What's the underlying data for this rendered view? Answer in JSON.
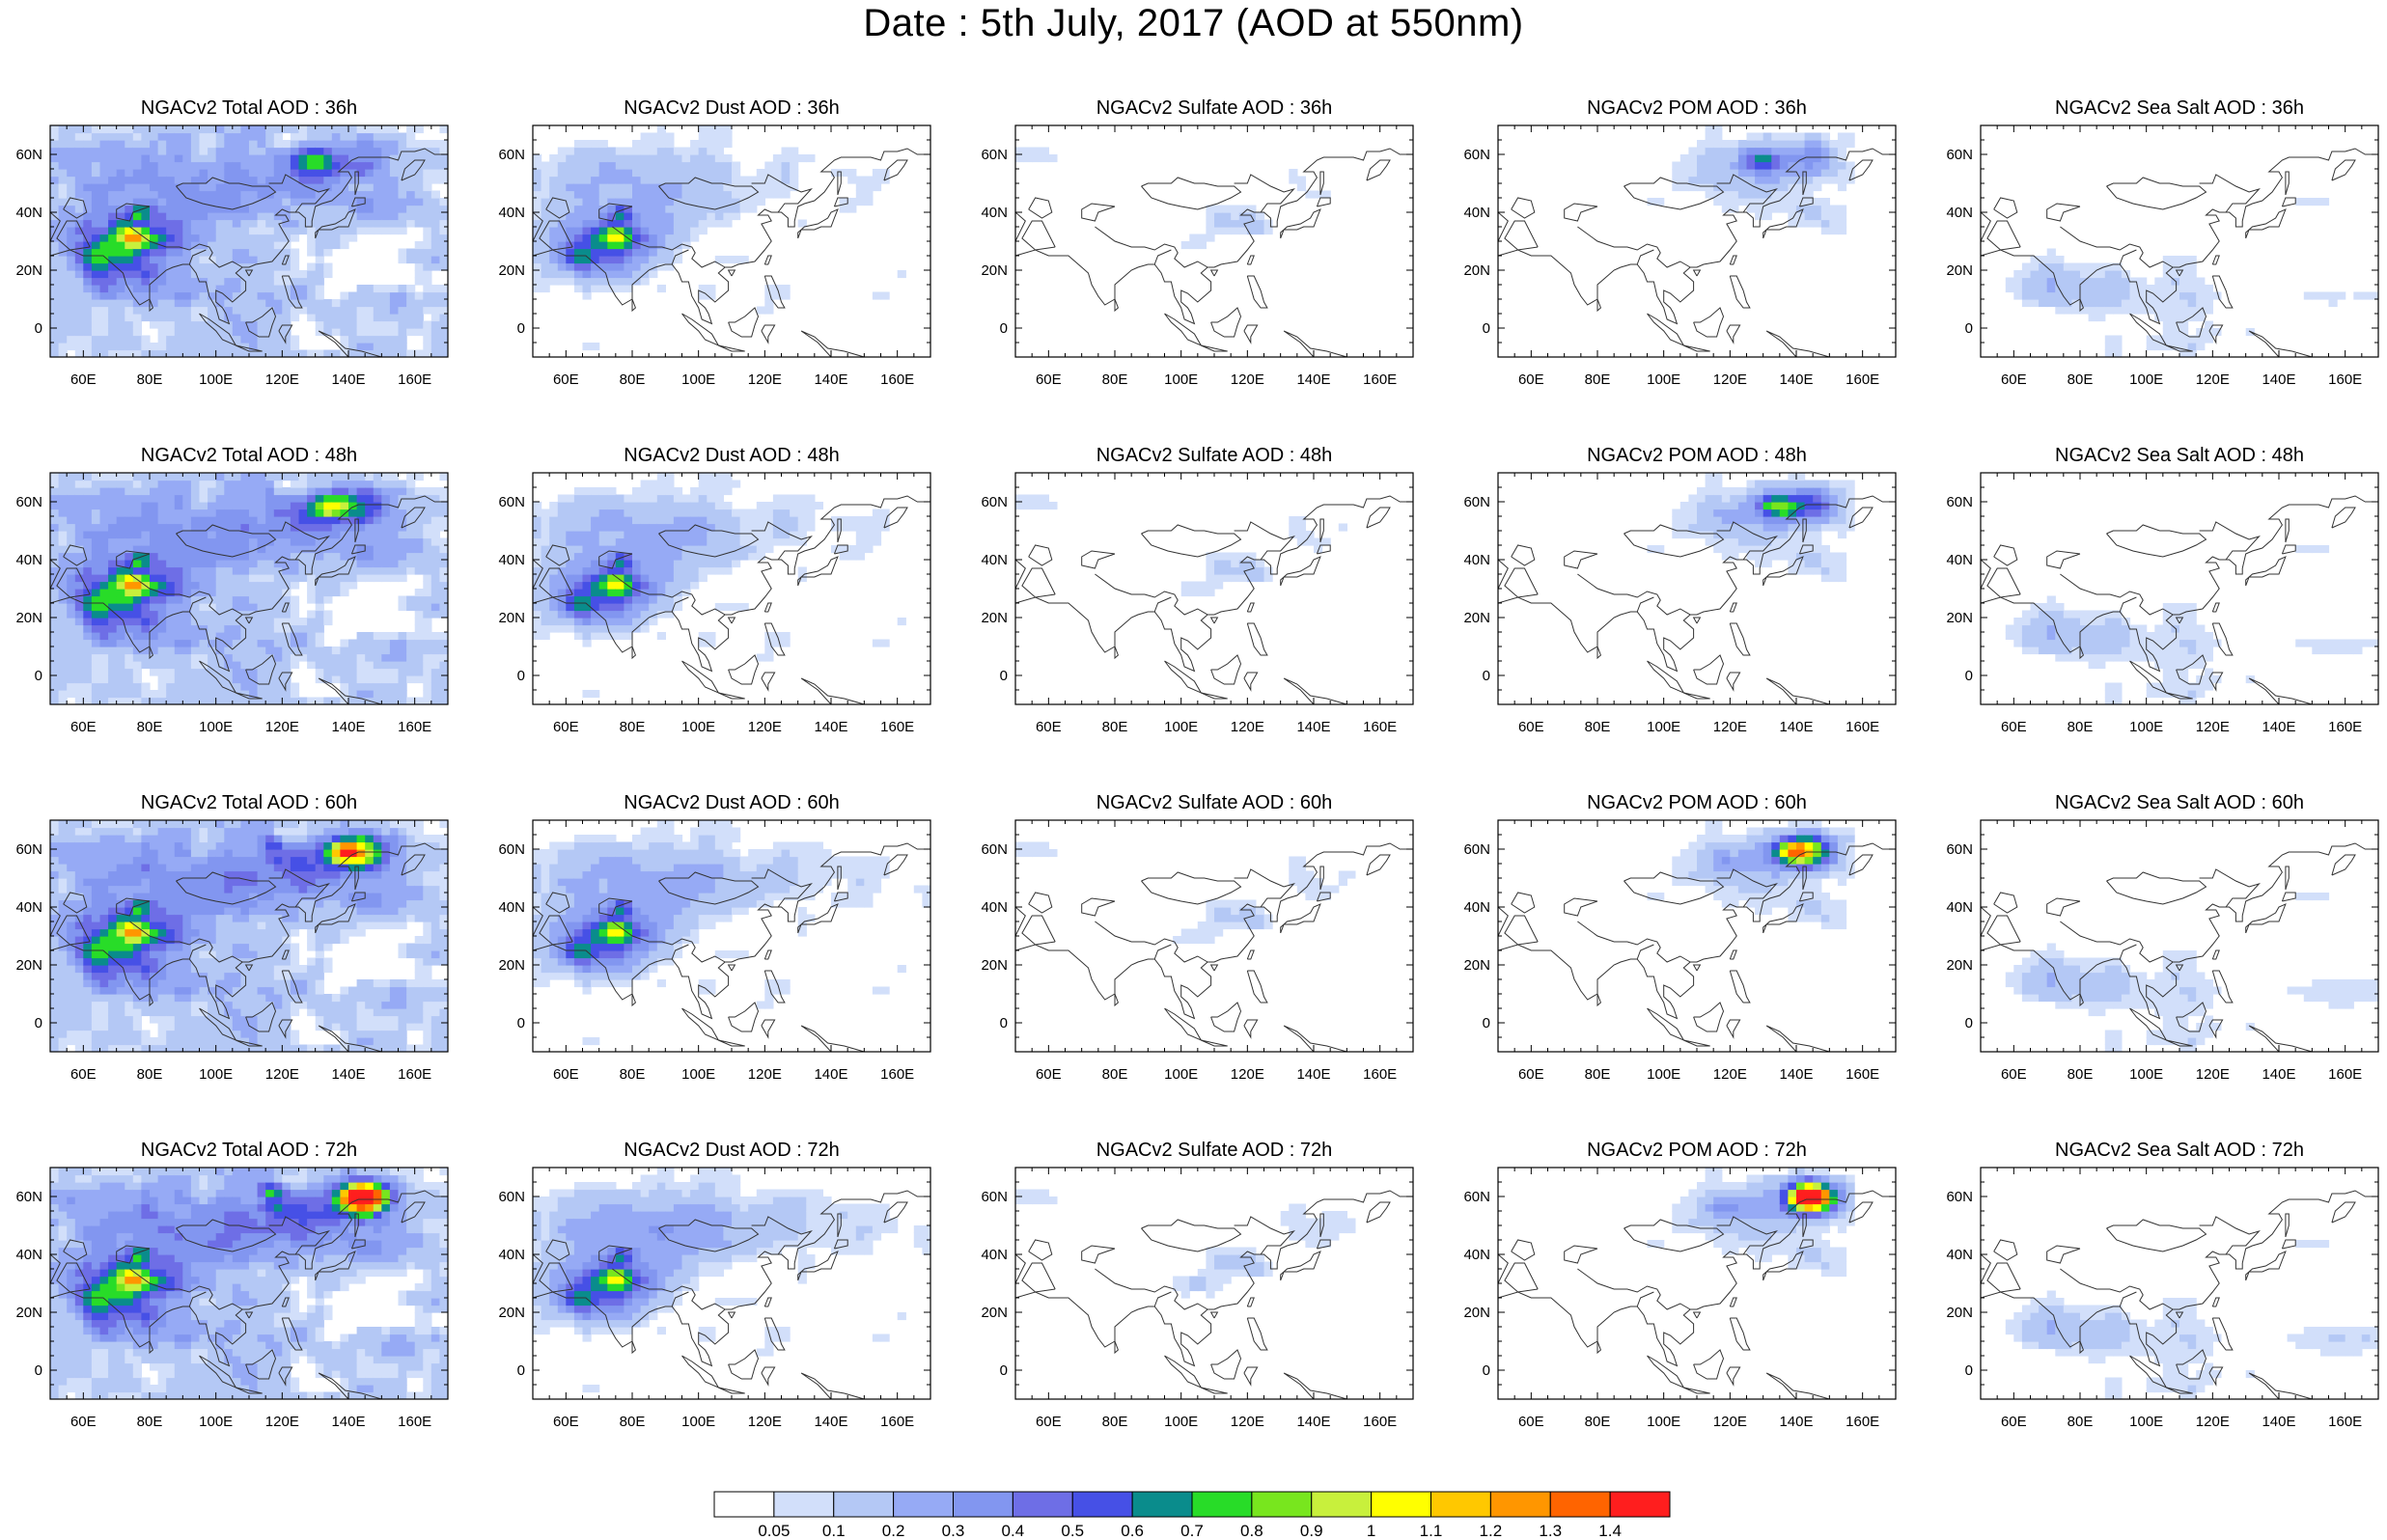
{
  "title": "Date : 5th July, 2017 (AOD at 550nm)",
  "panels": [
    {
      "title": "NGACv2 Total AOD : 36h",
      "species": "total",
      "hour": "36h"
    },
    {
      "title": "NGACv2 Dust AOD : 36h",
      "species": "dust",
      "hour": "36h"
    },
    {
      "title": "NGACv2 Sulfate AOD : 36h",
      "species": "sulfate",
      "hour": "36h"
    },
    {
      "title": "NGACv2 POM AOD : 36h",
      "species": "pom",
      "hour": "36h"
    },
    {
      "title": "NGACv2 Sea Salt AOD : 36h",
      "species": "seasalt",
      "hour": "36h"
    },
    {
      "title": "NGACv2 Total AOD : 48h",
      "species": "total",
      "hour": "48h"
    },
    {
      "title": "NGACv2 Dust AOD : 48h",
      "species": "dust",
      "hour": "48h"
    },
    {
      "title": "NGACv2 Sulfate AOD : 48h",
      "species": "sulfate",
      "hour": "48h"
    },
    {
      "title": "NGACv2 POM AOD : 48h",
      "species": "pom",
      "hour": "48h"
    },
    {
      "title": "NGACv2 Sea Salt AOD : 48h",
      "species": "seasalt",
      "hour": "48h"
    },
    {
      "title": "NGACv2 Total AOD : 60h",
      "species": "total",
      "hour": "60h"
    },
    {
      "title": "NGACv2 Dust AOD : 60h",
      "species": "dust",
      "hour": "60h"
    },
    {
      "title": "NGACv2 Sulfate AOD : 60h",
      "species": "sulfate",
      "hour": "60h"
    },
    {
      "title": "NGACv2 POM AOD : 60h",
      "species": "pom",
      "hour": "60h"
    },
    {
      "title": "NGACv2 Sea Salt AOD : 60h",
      "species": "seasalt",
      "hour": "60h"
    },
    {
      "title": "NGACv2 Total AOD : 72h",
      "species": "total",
      "hour": "72h"
    },
    {
      "title": "NGACv2 Dust AOD : 72h",
      "species": "dust",
      "hour": "72h"
    },
    {
      "title": "NGACv2 Sulfate AOD : 72h",
      "species": "sulfate",
      "hour": "72h"
    },
    {
      "title": "NGACv2 POM AOD : 72h",
      "species": "pom",
      "hour": "72h"
    },
    {
      "title": "NGACv2 Sea Salt  AOD : 72h",
      "species": "seasalt",
      "hour": "72h"
    }
  ],
  "map": {
    "lon_range": [
      50,
      170
    ],
    "lat_range": [
      -10,
      70
    ],
    "lon_ticks": [
      "60E",
      "80E",
      "100E",
      "120E",
      "140E",
      "160E"
    ],
    "lon_tick_values": [
      60,
      80,
      100,
      120,
      140,
      160
    ],
    "lat_ticks": [
      "60N",
      "40N",
      "20N",
      "0"
    ],
    "lat_tick_values": [
      60,
      40,
      20,
      0
    ]
  },
  "colorbar": {
    "labels": [
      "0.05",
      "0.1",
      "0.2",
      "0.3",
      "0.4",
      "0.5",
      "0.6",
      "0.7",
      "0.8",
      "0.9",
      "1",
      "1.1",
      "1.2",
      "1.3",
      "1.4"
    ],
    "colors": [
      "#ffffff",
      "#d2dffa",
      "#b4c8f5",
      "#96aaf5",
      "#8296f0",
      "#6e6ee6",
      "#4650e6",
      "#0a8c8c",
      "#28dc28",
      "#78e61e",
      "#c8f03c",
      "#ffff00",
      "#ffc800",
      "#ff9600",
      "#ff6400",
      "#ff1e1e"
    ]
  }
}
